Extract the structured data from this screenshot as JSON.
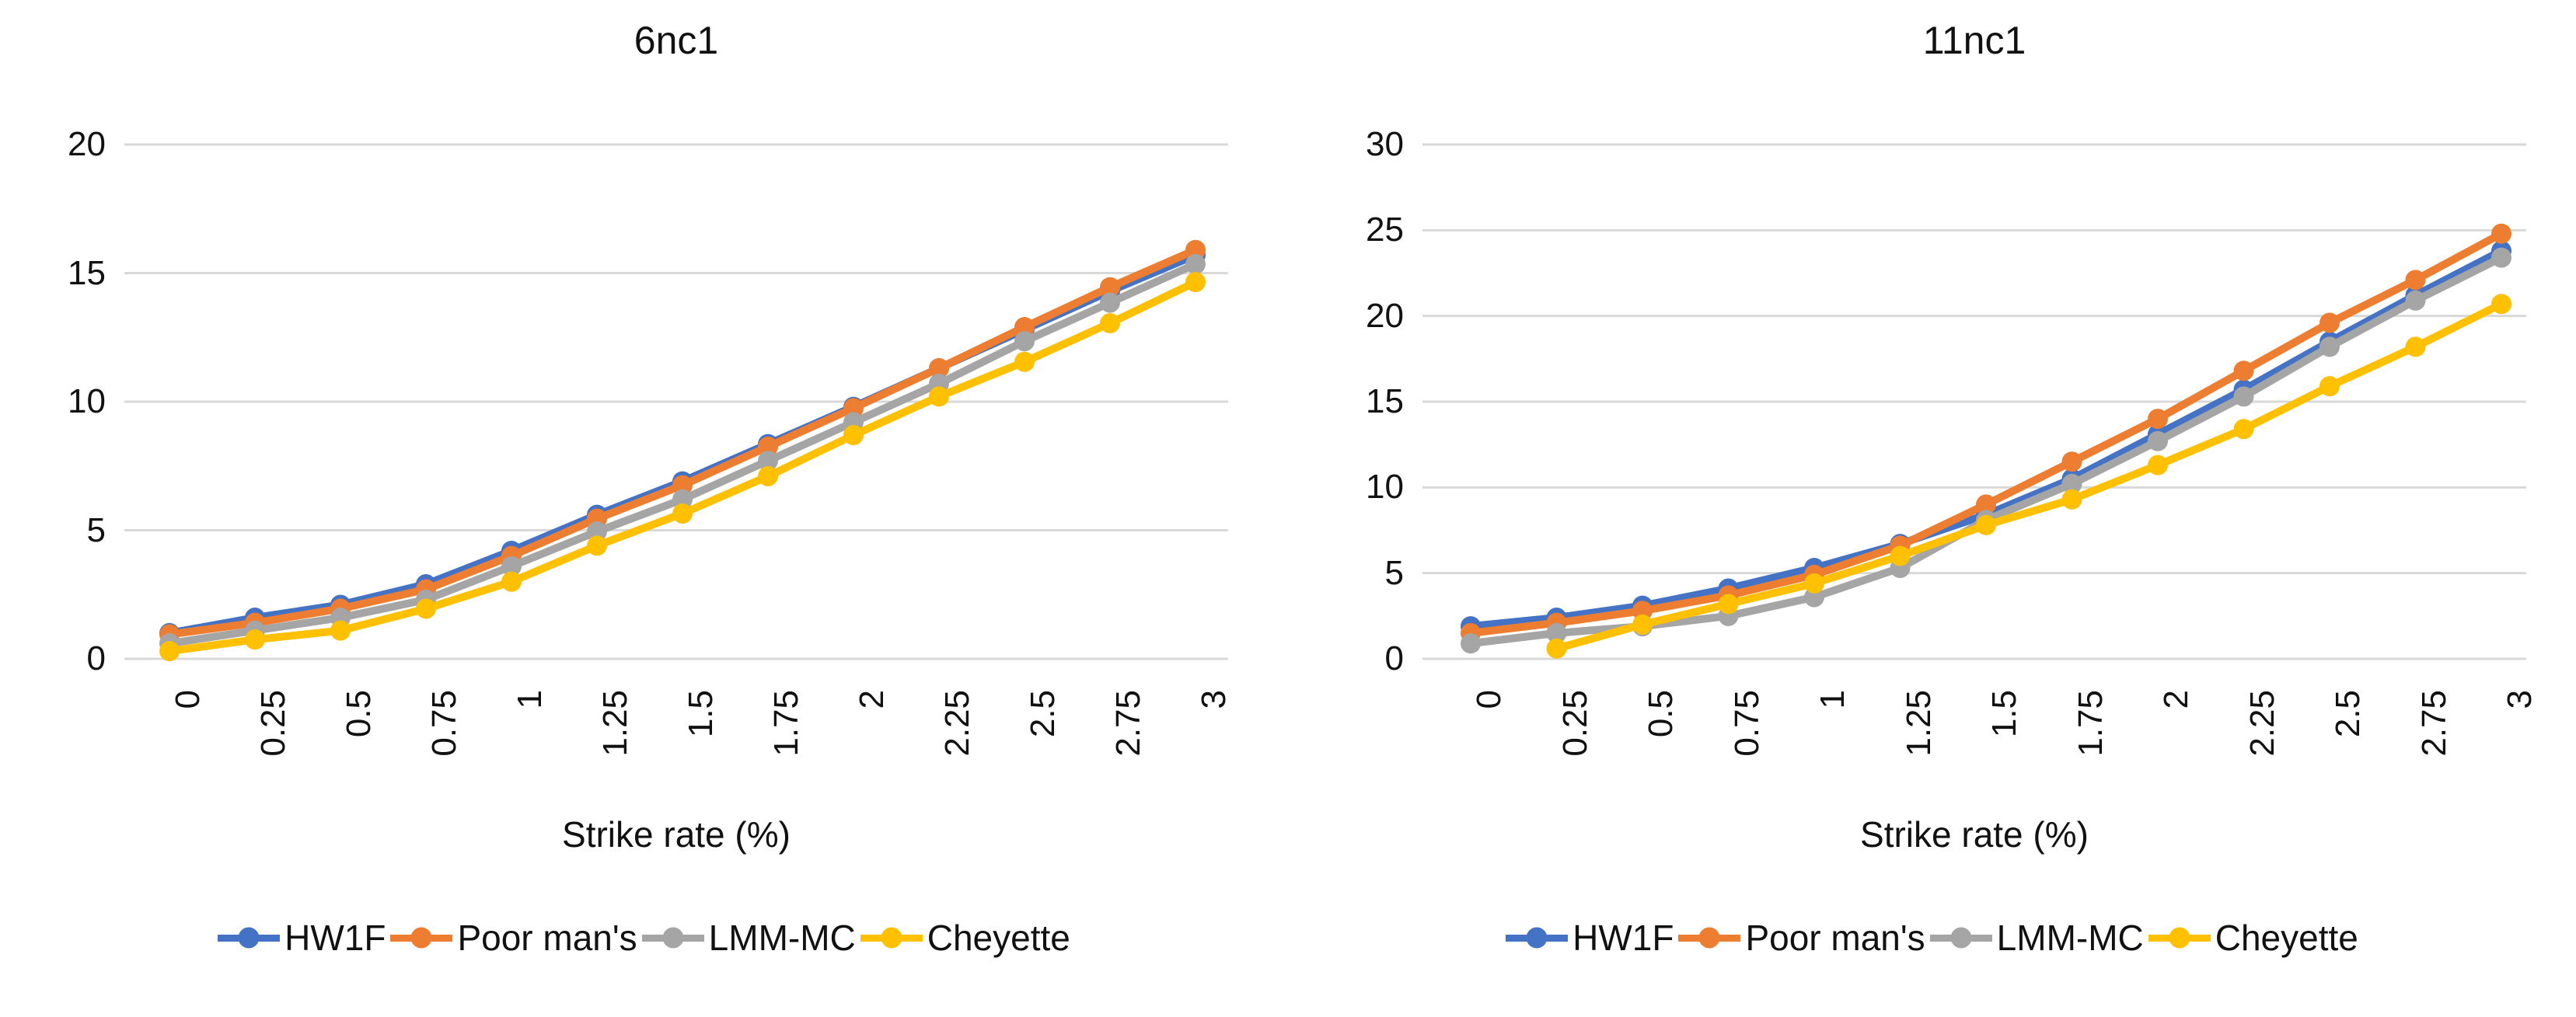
{
  "chart_data": [
    {
      "type": "line",
      "title": "6nc1",
      "xlabel": "Strike rate (%)",
      "categories": [
        "0",
        "0.25",
        "0.5",
        "0.75",
        "1",
        "1.25",
        "1.5",
        "1.75",
        "2",
        "2.25",
        "2.5",
        "2.75",
        "3"
      ],
      "ylim": [
        0,
        20
      ],
      "ytick_step": 5,
      "yticks": [
        "20",
        "15",
        "10",
        "5",
        "0"
      ],
      "grid": "horizontal",
      "legend_position": "bottom",
      "series": [
        {
          "name": "HW1F",
          "color": "#4472C4",
          "values": [
            1.0,
            1.6,
            2.1,
            2.9,
            4.2,
            5.6,
            6.9,
            8.35,
            9.8,
            11.3,
            12.8,
            14.3,
            15.7
          ]
        },
        {
          "name": "Poor man's",
          "color": "#ED7D31",
          "values": [
            0.95,
            1.4,
            1.95,
            2.7,
            4.0,
            5.45,
            6.75,
            8.25,
            9.75,
            11.3,
            12.9,
            14.45,
            15.9
          ]
        },
        {
          "name": "LMM-MC",
          "color": "#A5A5A5",
          "values": [
            0.6,
            1.1,
            1.6,
            2.3,
            3.6,
            4.95,
            6.2,
            7.7,
            9.2,
            10.7,
            12.35,
            13.85,
            15.35
          ]
        },
        {
          "name": "Cheyette",
          "color": "#FFC000",
          "values": [
            0.3,
            0.75,
            1.1,
            1.95,
            3.0,
            4.4,
            5.65,
            7.1,
            8.7,
            10.2,
            11.55,
            13.05,
            14.65
          ]
        }
      ]
    },
    {
      "type": "line",
      "title": "11nc1",
      "xlabel": "Strike rate (%)",
      "categories": [
        "0",
        "0.25",
        "0.5",
        "0.75",
        "1",
        "1.25",
        "1.5",
        "1.75",
        "2",
        "2.25",
        "2.5",
        "2.75",
        "3"
      ],
      "ylim": [
        0,
        30
      ],
      "ytick_step": 5,
      "yticks": [
        "30",
        "25",
        "20",
        "15",
        "10",
        "5",
        "0"
      ],
      "grid": "horizontal",
      "legend_position": "bottom",
      "series": [
        {
          "name": "HW1F",
          "color": "#4472C4",
          "values": [
            1.9,
            2.4,
            3.1,
            4.1,
            5.3,
            6.7,
            8.4,
            10.5,
            13.1,
            15.7,
            18.5,
            21.2,
            23.8
          ]
        },
        {
          "name": "Poor man's",
          "color": "#ED7D31",
          "values": [
            1.5,
            2.1,
            2.8,
            3.7,
            4.9,
            6.6,
            9.0,
            11.5,
            14.0,
            16.8,
            19.6,
            22.1,
            24.8
          ]
        },
        {
          "name": "LMM-MC",
          "color": "#A5A5A5",
          "values": [
            0.9,
            1.5,
            1.9,
            2.5,
            3.6,
            5.3,
            8.1,
            10.2,
            12.7,
            15.3,
            18.2,
            20.9,
            23.4
          ]
        },
        {
          "name": "Cheyette",
          "color": "#FFC000",
          "values": [
            null,
            0.6,
            2.0,
            3.2,
            4.4,
            6.0,
            7.8,
            9.3,
            11.3,
            13.4,
            15.9,
            18.2,
            20.7
          ]
        }
      ]
    }
  ],
  "style": {
    "gridline_color": "#D9D9D9",
    "text_color": "#111111",
    "background": "#FFFFFF"
  }
}
